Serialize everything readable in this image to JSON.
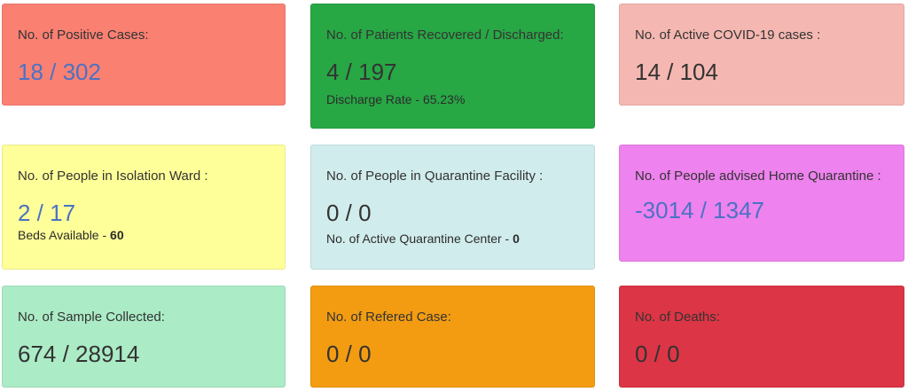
{
  "cards": [
    {
      "label": "No. of Positive Cases:",
      "value": "18 / 302",
      "sub": ""
    },
    {
      "label": "No. of Patients Recovered / Discharged:",
      "value": "4 / 197",
      "sub_prefix": "Discharge Rate - ",
      "sub_value": "65.23%"
    },
    {
      "label": "No. of Active COVID-19 cases :",
      "value": "14 / 104",
      "sub": ""
    },
    {
      "label": "No. of People in Isolation Ward :",
      "value": "2 / 17",
      "sub_prefix": "Beds Available - ",
      "sub_value": "60"
    },
    {
      "label": "No. of People in Quarantine Facility :",
      "value": "0 / 0",
      "sub_prefix": "No. of Active Quarantine Center - ",
      "sub_value": "0"
    },
    {
      "label": "No. of People advised Home Quarantine :",
      "value": "-3014 / 1347",
      "sub": ""
    },
    {
      "label": "No. of Sample Collected:",
      "value": "674 / 28914",
      "sub": ""
    },
    {
      "label": "No. of Refered Case:",
      "value": "0 / 0",
      "sub": ""
    },
    {
      "label": "No. of Deaths:",
      "value": "0 / 0",
      "sub": ""
    }
  ],
  "colors": {
    "positive": "#fa8072",
    "recovered": "#28a745",
    "active": "#f5b7b1",
    "isolation": "#ffff99",
    "quarantine_facility": "#d1ecec",
    "home_quarantine": "#ee82ee",
    "samples": "#abebc6",
    "refered": "#f39c12",
    "deaths": "#dc3545",
    "value_blue": "#4a72c4"
  }
}
